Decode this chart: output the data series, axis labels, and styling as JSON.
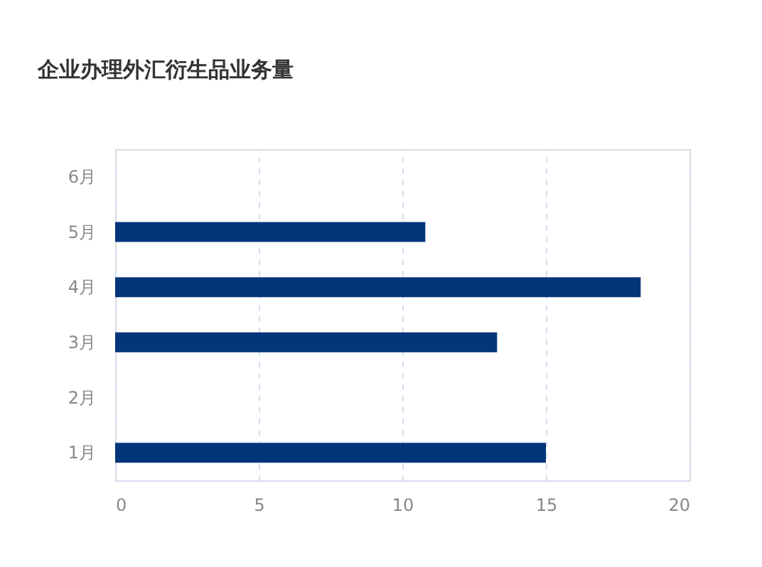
{
  "chart_data": {
    "type": "bar",
    "orientation": "horizontal",
    "title": "企业办理外汇衍生品业务量",
    "categories": [
      "6月",
      "5月",
      "4月",
      "3月",
      "2月",
      "1月"
    ],
    "values": [
      null,
      10.8,
      18.3,
      13.3,
      null,
      15.0
    ],
    "color": "#03357a",
    "xlim": [
      0,
      20
    ],
    "xticks": [
      0,
      5,
      10,
      15,
      20
    ],
    "grid": "x"
  }
}
